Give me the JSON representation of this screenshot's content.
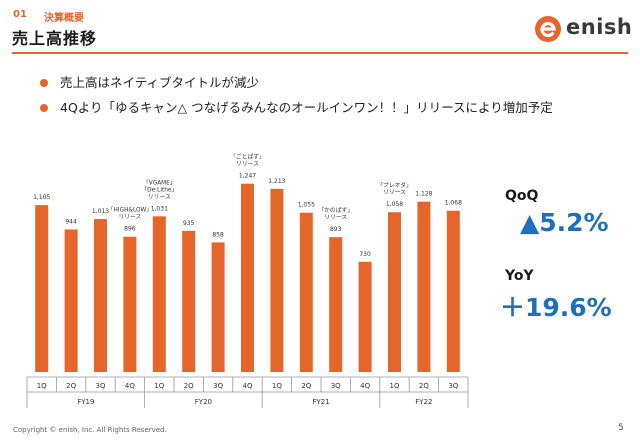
{
  "header": {
    "section_number": "01",
    "section_title": "決算概要",
    "page_title": "売上高推移",
    "logo_text": "enish",
    "accent_color": "#e5652a"
  },
  "bullets": [
    "売上高はネイティブタイトルが減少",
    "4Qより「ゆるキャン△ つなげるみんなのオールインワン！！」リリースにより増加予定"
  ],
  "metrics": {
    "qoq_label": "QoQ",
    "qoq_value": "▲5.2%",
    "yoy_label": "YoY",
    "yoy_value": "＋19.6%",
    "value_color": "#1f6fbe"
  },
  "chart_data": {
    "type": "bar",
    "bar_color": "#e5652a",
    "categories": [
      "1Q",
      "2Q",
      "3Q",
      "4Q",
      "1Q",
      "2Q",
      "3Q",
      "4Q",
      "1Q",
      "2Q",
      "3Q",
      "4Q",
      "1Q",
      "2Q",
      "3Q"
    ],
    "fiscal_years": [
      {
        "label": "FY19",
        "quarters": 4
      },
      {
        "label": "FY20",
        "quarters": 4
      },
      {
        "label": "FY21",
        "quarters": 4
      },
      {
        "label": "FY22",
        "quarters": 3
      }
    ],
    "values": [
      1105,
      944,
      1013,
      896,
      1031,
      935,
      858,
      1247,
      1213,
      1055,
      893,
      730,
      1058,
      1128,
      1068
    ],
    "data_labels": [
      "1,105",
      "944",
      "1,013",
      "896",
      "1,031",
      "935",
      "858",
      "1,247",
      "1,213",
      "1,055",
      "893",
      "730",
      "1,058",
      "1,128",
      "1,068"
    ],
    "annotations": [
      {
        "index": 3,
        "lines": [
          "「HIGH&LOW」",
          "リリース"
        ]
      },
      {
        "index": 4,
        "lines": [
          "「VGAME」",
          "「De:Lithe」",
          "リリース"
        ]
      },
      {
        "index": 7,
        "lines": [
          "「ごとぱず」",
          "リリース"
        ]
      },
      {
        "index": 10,
        "lines": [
          "「かのぱず」",
          "リリース"
        ]
      },
      {
        "index": 12,
        "lines": [
          "「プレオダ」",
          "リリース"
        ]
      }
    ],
    "title": "",
    "xlabel": "",
    "ylabel": "",
    "ylim": [
      0,
      1300
    ]
  },
  "footer": {
    "copyright": "Copyright © enish, Inc. All Rights Reserved.",
    "page_number": "5"
  }
}
